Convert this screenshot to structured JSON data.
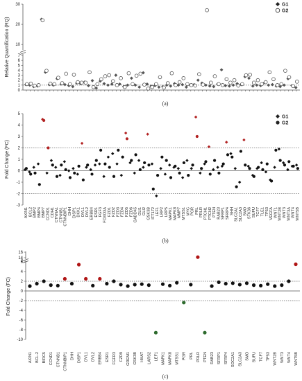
{
  "figure": {
    "panels": [
      {
        "label": "(a)"
      },
      {
        "label": "(b)"
      },
      {
        "label": "(c)"
      }
    ]
  },
  "chart_data": [
    {
      "type": "scatter",
      "ylabel": "Relative Quantification (RQ)",
      "xlabel": "",
      "axis_break": {
        "lower_max": 7,
        "upper_min": 8
      },
      "ylim": [
        0,
        30
      ],
      "yticks": [
        "0",
        "1",
        "2",
        "3",
        "4",
        "5",
        "6",
        "7",
        "10",
        "20",
        "30"
      ],
      "reference_lines": [
        1
      ],
      "grid": false,
      "legend": {
        "placement": "top-right",
        "entries": [
          "G1",
          "G2"
        ]
      },
      "series": [
        {
          "name": "G1",
          "marker": "diamond-filled",
          "color": "#555555",
          "values": [
            1.1,
            1.0,
            0.7,
            0.8,
            22.5,
            3.6,
            1.1,
            1.0,
            2.3,
            1.2,
            1.1,
            0.9,
            0.7,
            1.4,
            1.3,
            1.6,
            0.9,
            1.9,
            0.4,
            1.8,
            1.3,
            1.0,
            1.2,
            3.0,
            1.2,
            0.7,
            1.0,
            2.4,
            1.0,
            0.6,
            3.5,
            1.2,
            0.8,
            0.9,
            0.6,
            0.7,
            1.0,
            0.8,
            1.3,
            1.0,
            1.1,
            0.6,
            1.0,
            1.1,
            2.0,
            1.4,
            1.0,
            0.8,
            0.7,
            1.2,
            4.1,
            0.9,
            0.8,
            1.0,
            1.3,
            1.1,
            2.7,
            2.4,
            0.8,
            1.0,
            0.9,
            1.5,
            1.0,
            1.1,
            0.8,
            0.7,
            1.0,
            2.3,
            0.9,
            0.5
          ]
        },
        {
          "name": "G2",
          "marker": "circle-open",
          "color": "#555555",
          "values": [
            1.2,
            1.3,
            0.9,
            1.0,
            22.0,
            3.9,
            1.3,
            1.2,
            2.5,
            1.4,
            3.3,
            1.2,
            3.1,
            1.6,
            1.5,
            1.5,
            3.6,
            0.6,
            1.2,
            2.2,
            2.8,
            3.0,
            1.8,
            1.0,
            2.4,
            0.6,
            3.4,
            1.2,
            2.9,
            3.3,
            1.1,
            0.3,
            0.6,
            1.2,
            2.6,
            0.5,
            1.4,
            3.4,
            1.0,
            1.6,
            2.4,
            1.2,
            1.0,
            0.9,
            3.2,
            1.1,
            27.0,
            1.5,
            2.8,
            1.2,
            1.0,
            2.2,
            1.5,
            2.0,
            0.9,
            1.2,
            3.0,
            3.1,
            1.5,
            2.0,
            1.2,
            1.6,
            3.6,
            2.2,
            1.0,
            1.2,
            3.9,
            2.6,
            0.8,
            1.7
          ]
        }
      ]
    },
    {
      "type": "scatter",
      "ylabel": "Fold Change (FC)",
      "xlabel": "",
      "ylim": [
        -3,
        5
      ],
      "yticks": [
        "-3",
        "-2",
        "-1",
        "0",
        "1",
        "2",
        "3",
        "4",
        "5"
      ],
      "reference_lines": [
        2,
        0,
        -2
      ],
      "grid": false,
      "legend": {
        "placement": "top-right",
        "entries": [
          "G1",
          "G2"
        ]
      },
      "highlight_color": "#b22222",
      "categories": [
        "AXIN1",
        "BCL2",
        "BMP2",
        "BMP4",
        "BMP7",
        "CCND1",
        "CDH1",
        "CTNNA1",
        "CTNNB1",
        "CTNNBIP1",
        "DHH",
        "DISP1",
        "DKK1",
        "DVL1",
        "DVL2",
        "ERBB4",
        "ESR1",
        "FGF3",
        "FOXO3A",
        "FZD1",
        "FZD2",
        "FZD3",
        "FZD4",
        "FZD5",
        "FZD6",
        "GADD45",
        "GLI1",
        "GLI2",
        "GSK3B",
        "IFT172",
        "LEF1",
        "LRP2",
        "LRP5",
        "MAPK1",
        "MAPK8",
        "MMP7",
        "MTSS1",
        "MYC",
        "PGR",
        "PRL",
        "PRLR",
        "PTCH1",
        "PTCH2",
        "PTEN",
        "RAB23",
        "SFRP1",
        "SFRP4",
        "SHH",
        "SLC2A1",
        "SLC2A3",
        "SMO",
        "STK36",
        "SUFU",
        "TCF7",
        "TLE1",
        "TP53",
        "VEGFA",
        "WNT1",
        "WNT2B",
        "WNT3",
        "WNT3A",
        "WNT4",
        "WNT5B"
      ],
      "series": [
        {
          "name": "G1",
          "marker": "diamond-filled",
          "color": "#111111",
          "values": [
            0.1,
            -0.1,
            0.3,
            0.6,
            4.5,
            -0.2,
            0.9,
            0.3,
            -0.4,
            0.8,
            0.0,
            0.2,
            -0.3,
            2.4,
            0.3,
            0.1,
            0.5,
            0.6,
            -0.5,
            1.2,
            1.5,
            0.6,
            -0.4,
            3.3,
            0.7,
            -0.2,
            0.9,
            0.3,
            3.2,
            0.6,
            -2.2,
            0.2,
            -0.3,
            0.5,
            0.3,
            0.2,
            -0.6,
            0.9,
            0.2,
            4.7,
            -0.2,
            0.6,
            2.1,
            0.1,
            0.3,
            0.4,
            2.5,
            1.5,
            0.2,
            -1.0,
            2.7,
            0.4,
            -0.4,
            0.2,
            0.7,
            -0.1,
            -0.8,
            0.3,
            1.9,
            0.7,
            0.1,
            0.4,
            0.5
          ]
        },
        {
          "name": "G2",
          "marker": "circle-filled",
          "color": "#111111",
          "values": [
            0.2,
            -0.3,
            -0.2,
            -1.2,
            4.4,
            2.0,
            0.5,
            -0.5,
            0.5,
            0.1,
            -0.6,
            -0.2,
            0.4,
            -0.8,
            0.5,
            -0.3,
            0.9,
            1.8,
            0.6,
            0.3,
            -0.5,
            1.8,
            1.2,
            2.8,
            0.9,
            1.4,
            0.1,
            0.7,
            0.5,
            -1.6,
            -0.4,
            1.2,
            0.9,
            -0.6,
            0.4,
            -0.2,
            0.7,
            -0.4,
            0.5,
            3.0,
            0.2,
            0.8,
            -0.3,
            0.9,
            -0.2,
            0.6,
            1.4,
            1.2,
            -1.4,
            1.7,
            0.5,
            0.2,
            -0.5,
            0.3,
            0.1,
            0.6,
            -0.9,
            1.8,
            0.9,
            0.5,
            0.8,
            0.4,
            0.2
          ]
        }
      ]
    },
    {
      "type": "scatter",
      "ylabel": "Fold Change (FC)",
      "xlabel": "",
      "axis_break": {
        "lower_max": 6,
        "upper_min": 8
      },
      "ylim": [
        -10,
        16
      ],
      "yticks": [
        "-10",
        "-8",
        "-6",
        "-4",
        "-2",
        "0",
        "2",
        "4",
        "6",
        "8",
        "14",
        "16"
      ],
      "reference_lines": [
        2,
        -2
      ],
      "grid": false,
      "legend": {
        "placement": "none",
        "entries": []
      },
      "colors": {
        "up": "#b01515",
        "down": "#2e6b2e",
        "neutral": "#111111"
      },
      "categories": [
        "AXIN1",
        "BCL-2",
        "BIRC5",
        "CCND1",
        "CTNNB1",
        "CTNNBIP1",
        "DHH",
        "DISP1",
        "DVL1",
        "DVL2",
        "ERBB4",
        "ESR1",
        "FGFR3",
        "FZD9",
        "GREM1",
        "GSK3B",
        "HHAT",
        "LARS2",
        "LEF1",
        "MAPK1",
        "MAPK8",
        "MTSS1",
        "PGR",
        "PRL",
        "PRLR",
        "PTEN",
        "RAB23",
        "SFRP1",
        "SFRP4",
        "SOC2A1",
        "SLC2A3",
        "SMO",
        "SUFU",
        "TCF7",
        "TP53",
        "WNT2B",
        "WNT3",
        "WNT4",
        "WNT5B"
      ],
      "values": [
        1.0,
        1.5,
        2.0,
        1.2,
        1.1,
        2.5,
        1.5,
        6.5,
        2.5,
        1.1,
        2.5,
        1.5,
        2.0,
        1.3,
        1.0,
        1.3,
        1.4,
        1.2,
        -8.6,
        1.4,
        1.1,
        1.7,
        -2.4,
        1.3,
        14.2,
        -8.6,
        1.0,
        1.8,
        1.5,
        1.6,
        1.3,
        1.6,
        1.2,
        1.1,
        1.4,
        1.0,
        1.2,
        2.0,
        5.5
      ]
    }
  ]
}
